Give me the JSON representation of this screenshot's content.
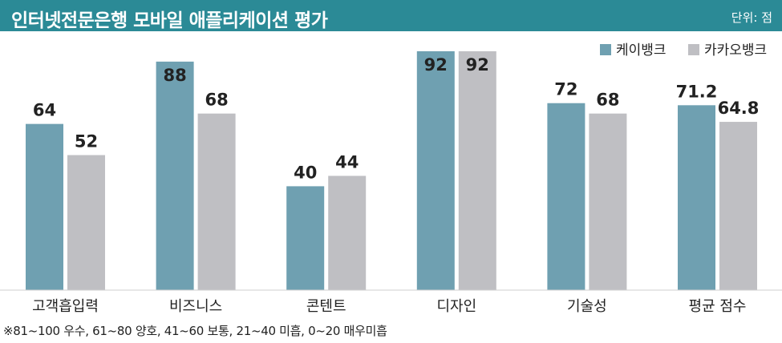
{
  "header": {
    "title": "인터넷전문은행 모바일 애플리케이션 평가",
    "unit": "단위: 점"
  },
  "footnote": "※81~100 우수, 61~80 양호, 41~60 보통, 21~40 미흡, 0~20 매우미흡",
  "colors": {
    "title_bg": "#2b8a96",
    "kbank": "#6fa0b1",
    "kakaobank": "#bfbfc3"
  },
  "chart_data": {
    "type": "bar",
    "title": "인터넷전문은행 모바일 애플리케이션 평가",
    "xlabel": "",
    "ylabel": "",
    "unit": "단위: 점",
    "legend_position": "top-right",
    "grid": false,
    "ylim": [
      0,
      100
    ],
    "categories": [
      "고객흡입력",
      "비즈니스",
      "콘텐트",
      "디자인",
      "기술성",
      "평균 점수"
    ],
    "series": [
      {
        "name": "케이뱅크",
        "color": "#6fa0b1",
        "values": [
          64,
          88,
          40,
          92,
          72,
          71.2
        ],
        "labels": [
          "64",
          "88",
          "40",
          "92",
          "72",
          "71.2"
        ]
      },
      {
        "name": "카카오뱅크",
        "color": "#bfbfc3",
        "values": [
          52,
          68,
          44,
          92,
          68,
          64.8
        ],
        "labels": [
          "52",
          "68",
          "44",
          "92",
          "68",
          "64.8"
        ]
      }
    ]
  }
}
